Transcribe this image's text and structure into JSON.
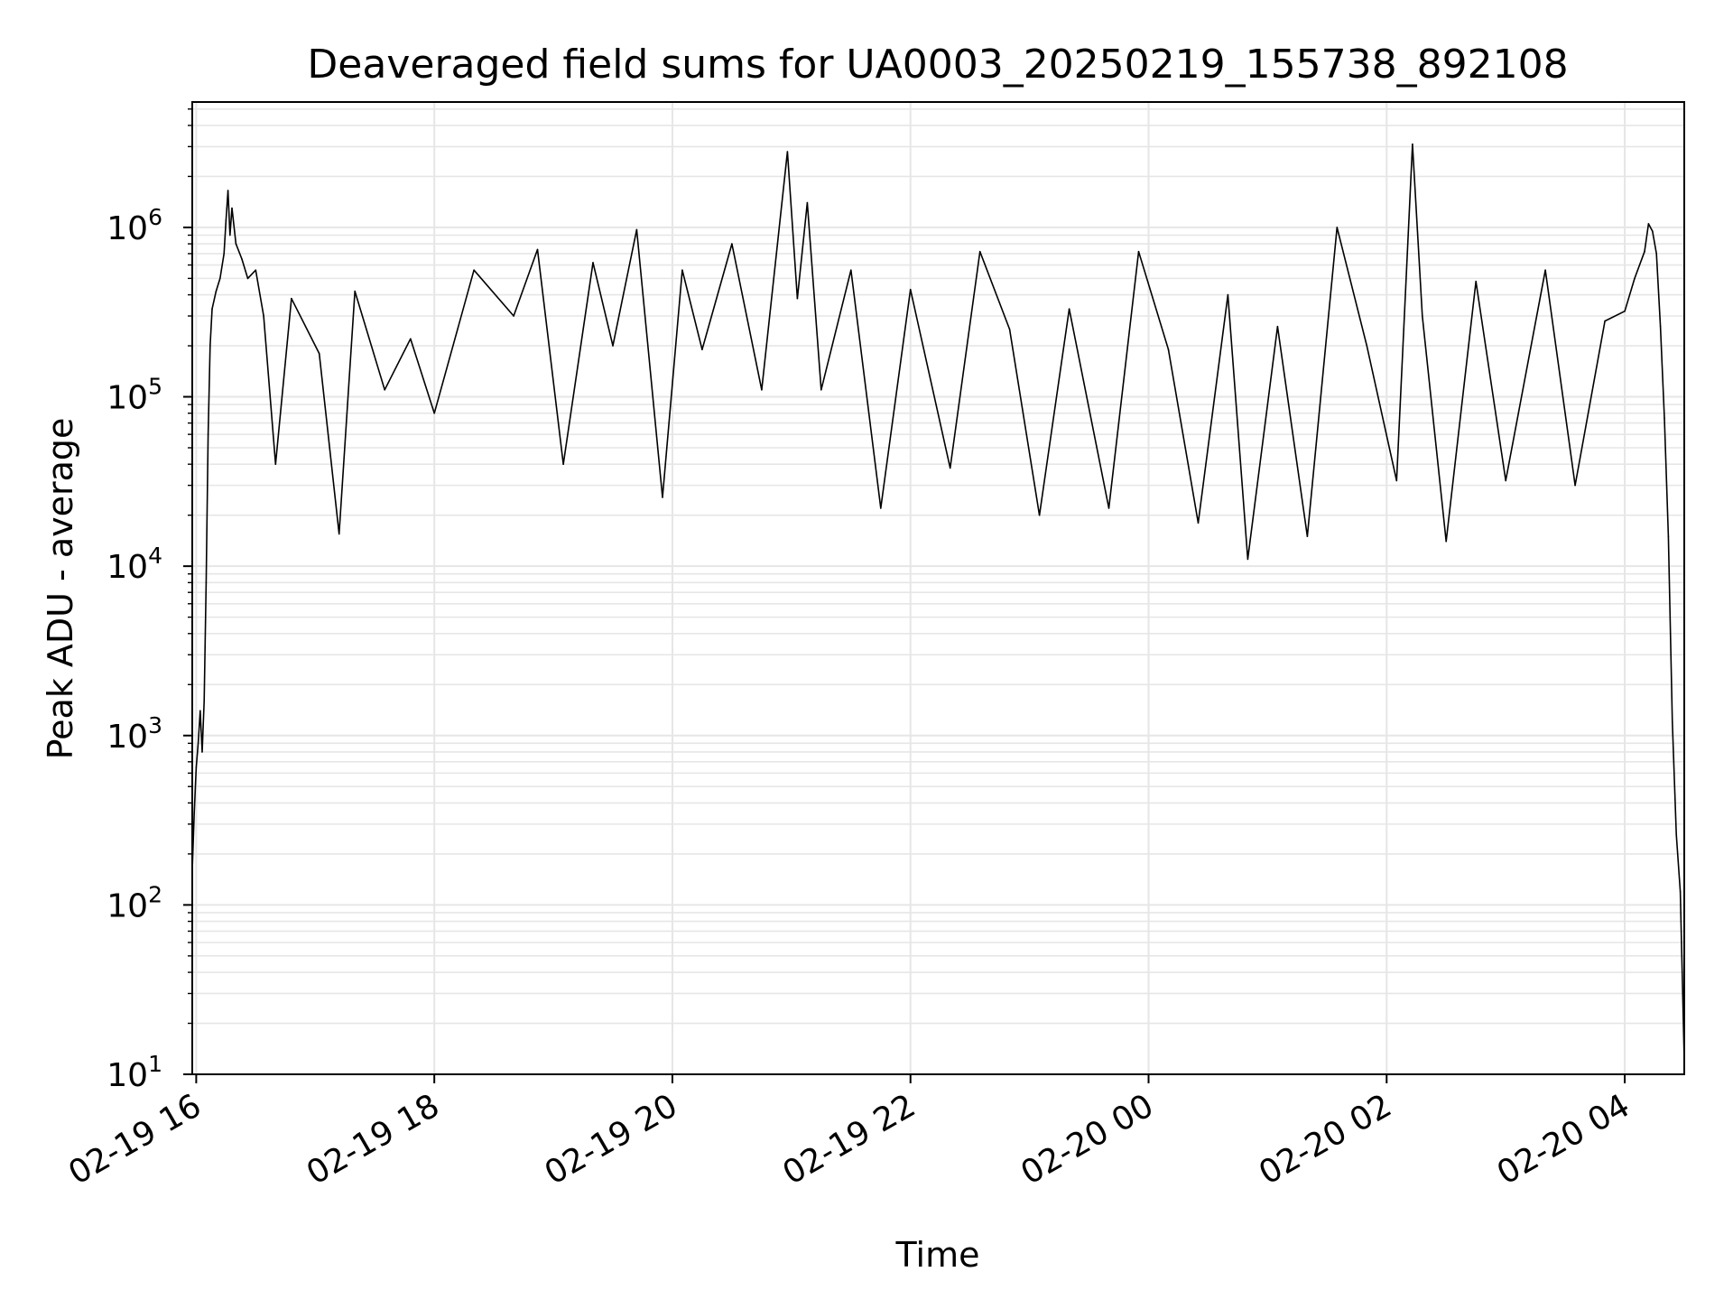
{
  "chart_data": {
    "type": "line",
    "title": "Deaveraged field sums for UA0003_20250219_155738_892108",
    "xlabel": "Time",
    "ylabel": "Peak ADU - average",
    "yscale": "log",
    "ylim": [
      10,
      5500000
    ],
    "xlim": [
      "2025-02-19 15:58",
      "2025-02-20 04:30"
    ],
    "grid": true,
    "line_color": "#000000",
    "grid_color": "#e6e6e6",
    "x_ticks": [
      {
        "value": "2025-02-19 16:00",
        "label": "02-19 16"
      },
      {
        "value": "2025-02-19 18:00",
        "label": "02-19 18"
      },
      {
        "value": "2025-02-19 20:00",
        "label": "02-19 20"
      },
      {
        "value": "2025-02-19 22:00",
        "label": "02-19 22"
      },
      {
        "value": "2025-02-20 00:00",
        "label": "02-20 00"
      },
      {
        "value": "2025-02-20 02:00",
        "label": "02-20 02"
      },
      {
        "value": "2025-02-20 04:00",
        "label": "02-20 04"
      }
    ],
    "y_ticks": [
      {
        "value": 10,
        "base": "10",
        "exp": "1"
      },
      {
        "value": 100,
        "base": "10",
        "exp": "2"
      },
      {
        "value": 1000,
        "base": "10",
        "exp": "3"
      },
      {
        "value": 10000,
        "base": "10",
        "exp": "4"
      },
      {
        "value": 100000,
        "base": "10",
        "exp": "5"
      },
      {
        "value": 1000000,
        "base": "10",
        "exp": "6"
      }
    ],
    "series": [
      {
        "points": [
          [
            "2025-02-19 15:58",
            160
          ],
          [
            "2025-02-19 15:59",
            350
          ],
          [
            "2025-02-19 16:00",
            650
          ],
          [
            "2025-02-19 16:01",
            900
          ],
          [
            "2025-02-19 16:02",
            1400
          ],
          [
            "2025-02-19 16:03",
            800
          ],
          [
            "2025-02-19 16:04",
            1600
          ],
          [
            "2025-02-19 16:05",
            8000
          ],
          [
            "2025-02-19 16:06",
            60000
          ],
          [
            "2025-02-19 16:07",
            200000
          ],
          [
            "2025-02-19 16:08",
            330000
          ],
          [
            "2025-02-19 16:10",
            420000
          ],
          [
            "2025-02-19 16:12",
            500000
          ],
          [
            "2025-02-19 16:14",
            700000
          ],
          [
            "2025-02-19 16:15",
            1100000
          ],
          [
            "2025-02-19 16:16",
            1650000
          ],
          [
            "2025-02-19 16:17",
            900000
          ],
          [
            "2025-02-19 16:18",
            1300000
          ],
          [
            "2025-02-19 16:20",
            800000
          ],
          [
            "2025-02-19 16:23",
            650000
          ],
          [
            "2025-02-19 16:26",
            500000
          ],
          [
            "2025-02-19 16:30",
            560000
          ],
          [
            "2025-02-19 16:34",
            300000
          ],
          [
            "2025-02-19 16:40",
            40000
          ],
          [
            "2025-02-19 16:48",
            380000
          ],
          [
            "2025-02-19 17:02",
            180000
          ],
          [
            "2025-02-19 17:12",
            15500
          ],
          [
            "2025-02-19 17:20",
            420000
          ],
          [
            "2025-02-19 17:35",
            110000
          ],
          [
            "2025-02-19 17:48",
            220000
          ],
          [
            "2025-02-19 18:00",
            80000
          ],
          [
            "2025-02-19 18:20",
            560000
          ],
          [
            "2025-02-19 18:40",
            300000
          ],
          [
            "2025-02-19 18:52",
            740000
          ],
          [
            "2025-02-19 19:05",
            40000
          ],
          [
            "2025-02-19 19:20",
            620000
          ],
          [
            "2025-02-19 19:30",
            200000
          ],
          [
            "2025-02-19 19:42",
            970000
          ],
          [
            "2025-02-19 19:55",
            25500
          ],
          [
            "2025-02-19 20:05",
            560000
          ],
          [
            "2025-02-19 20:15",
            190000
          ],
          [
            "2025-02-19 20:30",
            800000
          ],
          [
            "2025-02-19 20:45",
            110000
          ],
          [
            "2025-02-19 20:58",
            2800000
          ],
          [
            "2025-02-19 21:03",
            380000
          ],
          [
            "2025-02-19 21:08",
            1400000
          ],
          [
            "2025-02-19 21:15",
            110000
          ],
          [
            "2025-02-19 21:30",
            560000
          ],
          [
            "2025-02-19 21:45",
            22000
          ],
          [
            "2025-02-19 22:00",
            430000
          ],
          [
            "2025-02-19 22:20",
            38000
          ],
          [
            "2025-02-19 22:35",
            720000
          ],
          [
            "2025-02-19 22:50",
            250000
          ],
          [
            "2025-02-19 23:05",
            20000
          ],
          [
            "2025-02-19 23:20",
            330000
          ],
          [
            "2025-02-19 23:40",
            22000
          ],
          [
            "2025-02-19 23:55",
            720000
          ],
          [
            "2025-02-20 00:10",
            190000
          ],
          [
            "2025-02-20 00:25",
            18000
          ],
          [
            "2025-02-20 00:40",
            400000
          ],
          [
            "2025-02-20 00:50",
            11000
          ],
          [
            "2025-02-20 01:05",
            260000
          ],
          [
            "2025-02-20 01:20",
            15000
          ],
          [
            "2025-02-20 01:35",
            1000000
          ],
          [
            "2025-02-20 01:50",
            200000
          ],
          [
            "2025-02-20 02:05",
            32000
          ],
          [
            "2025-02-20 02:13",
            3100000
          ],
          [
            "2025-02-20 02:18",
            300000
          ],
          [
            "2025-02-20 02:30",
            14000
          ],
          [
            "2025-02-20 02:45",
            480000
          ],
          [
            "2025-02-20 03:00",
            32000
          ],
          [
            "2025-02-20 03:20",
            560000
          ],
          [
            "2025-02-20 03:35",
            30000
          ],
          [
            "2025-02-20 03:50",
            280000
          ],
          [
            "2025-02-20 04:00",
            320000
          ],
          [
            "2025-02-20 04:05",
            500000
          ],
          [
            "2025-02-20 04:10",
            720000
          ],
          [
            "2025-02-20 04:12",
            1050000
          ],
          [
            "2025-02-20 04:14",
            950000
          ],
          [
            "2025-02-20 04:16",
            700000
          ],
          [
            "2025-02-20 04:18",
            260000
          ],
          [
            "2025-02-20 04:20",
            75000
          ],
          [
            "2025-02-20 04:22",
            15000
          ],
          [
            "2025-02-20 04:24",
            1200
          ],
          [
            "2025-02-20 04:26",
            260
          ],
          [
            "2025-02-20 04:28",
            120
          ],
          [
            "2025-02-20 04:30",
            12
          ]
        ]
      }
    ]
  }
}
